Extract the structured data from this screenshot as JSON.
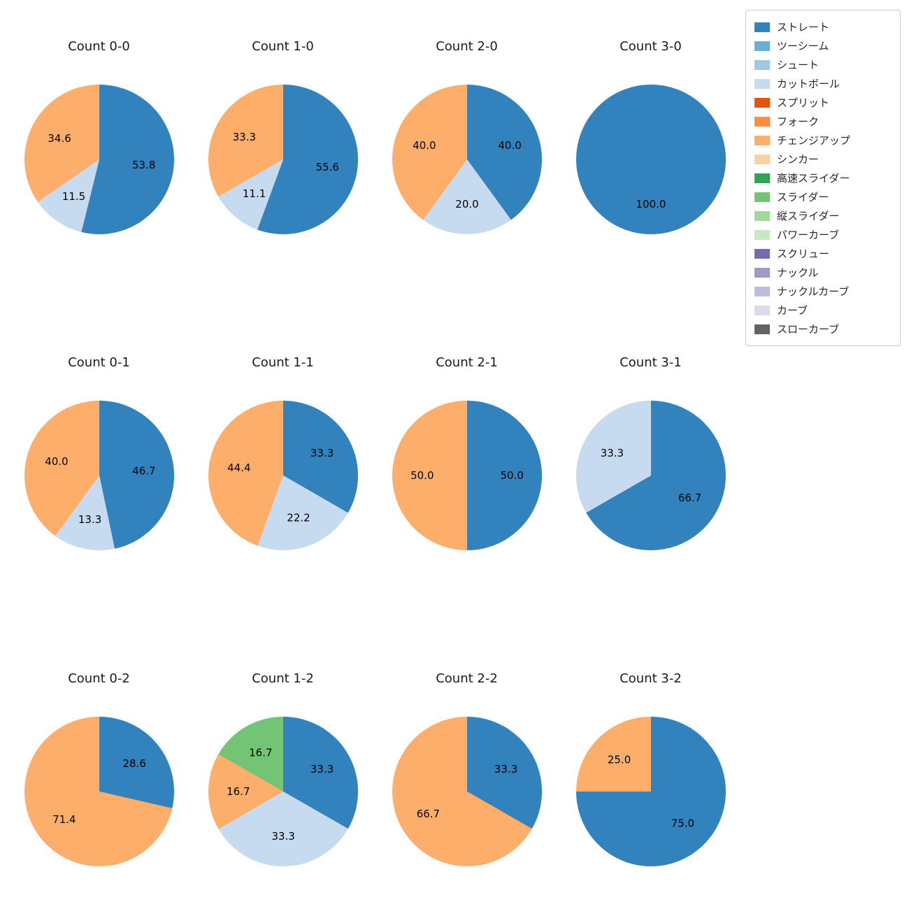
{
  "legend": {
    "items": [
      {
        "label": "ストレート",
        "color": "#3182bd"
      },
      {
        "label": "ツーシーム",
        "color": "#6baed6"
      },
      {
        "label": "シュート",
        "color": "#9ecae1"
      },
      {
        "label": "カットボール",
        "color": "#c6dbef"
      },
      {
        "label": "スプリット",
        "color": "#e6550d"
      },
      {
        "label": "フォーク",
        "color": "#fd8d3c"
      },
      {
        "label": "チェンジアップ",
        "color": "#fdae6b"
      },
      {
        "label": "シンカー",
        "color": "#fdd0a2"
      },
      {
        "label": "高速スライダー",
        "color": "#31a354"
      },
      {
        "label": "スライダー",
        "color": "#74c476"
      },
      {
        "label": "縦スライダー",
        "color": "#a1d99b"
      },
      {
        "label": "パワーカーブ",
        "color": "#c7e9c0"
      },
      {
        "label": "スクリュー",
        "color": "#756bb1"
      },
      {
        "label": "ナックル",
        "color": "#9e9ac8"
      },
      {
        "label": "ナックルカーブ",
        "color": "#bcbddc"
      },
      {
        "label": "カーブ",
        "color": "#dadaeb"
      },
      {
        "label": "スローカーブ",
        "color": "#636363"
      }
    ]
  },
  "chart_data": [
    {
      "type": "pie",
      "title": "Count 0-0",
      "start_angle": 90,
      "counterclock": false,
      "slices": [
        {
          "label": "ストレート",
          "value": 53.8,
          "color": "#3182bd"
        },
        {
          "label": "カットボール",
          "value": 11.5,
          "color": "#c6dbef"
        },
        {
          "label": "チェンジアップ",
          "value": 34.6,
          "color": "#fdae6b"
        }
      ]
    },
    {
      "type": "pie",
      "title": "Count 1-0",
      "start_angle": 90,
      "counterclock": false,
      "slices": [
        {
          "label": "ストレート",
          "value": 55.6,
          "color": "#3182bd"
        },
        {
          "label": "カットボール",
          "value": 11.1,
          "color": "#c6dbef"
        },
        {
          "label": "チェンジアップ",
          "value": 33.3,
          "color": "#fdae6b"
        }
      ]
    },
    {
      "type": "pie",
      "title": "Count 2-0",
      "start_angle": 90,
      "counterclock": false,
      "slices": [
        {
          "label": "ストレート",
          "value": 40.0,
          "color": "#3182bd"
        },
        {
          "label": "カットボール",
          "value": 20.0,
          "color": "#c6dbef"
        },
        {
          "label": "チェンジアップ",
          "value": 40.0,
          "color": "#fdae6b"
        }
      ]
    },
    {
      "type": "pie",
      "title": "Count 3-0",
      "start_angle": 90,
      "counterclock": false,
      "slices": [
        {
          "label": "ストレート",
          "value": 100.0,
          "color": "#3182bd"
        }
      ]
    },
    {
      "type": "pie",
      "title": "Count 0-1",
      "start_angle": 90,
      "counterclock": false,
      "slices": [
        {
          "label": "ストレート",
          "value": 46.7,
          "color": "#3182bd"
        },
        {
          "label": "カットボール",
          "value": 13.3,
          "color": "#c6dbef"
        },
        {
          "label": "チェンジアップ",
          "value": 40.0,
          "color": "#fdae6b"
        }
      ]
    },
    {
      "type": "pie",
      "title": "Count 1-1",
      "start_angle": 90,
      "counterclock": false,
      "slices": [
        {
          "label": "ストレート",
          "value": 33.3,
          "color": "#3182bd"
        },
        {
          "label": "カットボール",
          "value": 22.2,
          "color": "#c6dbef"
        },
        {
          "label": "チェンジアップ",
          "value": 44.4,
          "color": "#fdae6b"
        }
      ]
    },
    {
      "type": "pie",
      "title": "Count 2-1",
      "start_angle": 90,
      "counterclock": false,
      "slices": [
        {
          "label": "ストレート",
          "value": 50.0,
          "color": "#3182bd"
        },
        {
          "label": "チェンジアップ",
          "value": 50.0,
          "color": "#fdae6b"
        }
      ]
    },
    {
      "type": "pie",
      "title": "Count 3-1",
      "start_angle": 90,
      "counterclock": false,
      "slices": [
        {
          "label": "ストレート",
          "value": 66.7,
          "color": "#3182bd"
        },
        {
          "label": "カットボール",
          "value": 33.3,
          "color": "#c6dbef"
        }
      ]
    },
    {
      "type": "pie",
      "title": "Count 0-2",
      "start_angle": 90,
      "counterclock": false,
      "slices": [
        {
          "label": "ストレート",
          "value": 28.6,
          "color": "#3182bd"
        },
        {
          "label": "チェンジアップ",
          "value": 71.4,
          "color": "#fdae6b"
        }
      ]
    },
    {
      "type": "pie",
      "title": "Count 1-2",
      "start_angle": 90,
      "counterclock": false,
      "slices": [
        {
          "label": "ストレート",
          "value": 33.3,
          "color": "#3182bd"
        },
        {
          "label": "カットボール",
          "value": 33.3,
          "color": "#c6dbef"
        },
        {
          "label": "チェンジアップ",
          "value": 16.7,
          "color": "#fdae6b"
        },
        {
          "label": "スライダー",
          "value": 16.7,
          "color": "#74c476"
        }
      ]
    },
    {
      "type": "pie",
      "title": "Count 2-2",
      "start_angle": 90,
      "counterclock": false,
      "slices": [
        {
          "label": "ストレート",
          "value": 33.3,
          "color": "#3182bd"
        },
        {
          "label": "チェンジアップ",
          "value": 66.7,
          "color": "#fdae6b"
        }
      ]
    },
    {
      "type": "pie",
      "title": "Count 3-2",
      "start_angle": 90,
      "counterclock": false,
      "slices": [
        {
          "label": "ストレート",
          "value": 75.0,
          "color": "#3182bd"
        },
        {
          "label": "チェンジアップ",
          "value": 25.0,
          "color": "#fdae6b"
        }
      ]
    }
  ]
}
